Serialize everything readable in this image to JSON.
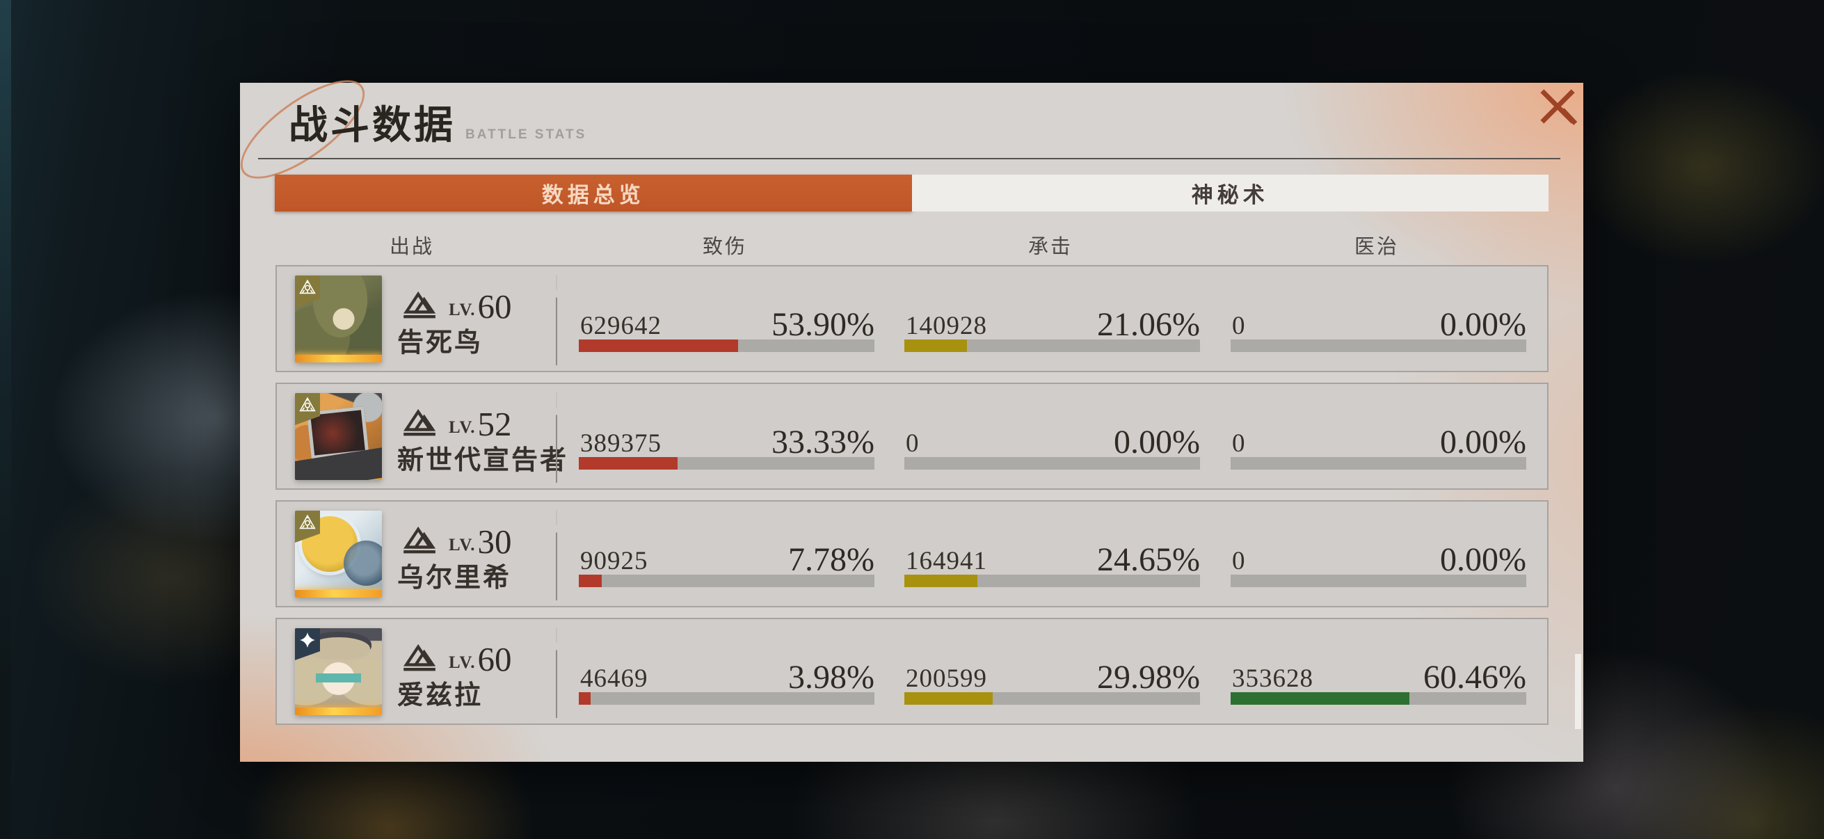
{
  "panel": {
    "title": "战斗数据",
    "subtitle": "BATTLE STATS"
  },
  "tabs": [
    {
      "label": "数据总览",
      "active": true
    },
    {
      "label": "神秘术",
      "active": false
    }
  ],
  "columns": [
    "出战",
    "致伤",
    "承击",
    "医治"
  ],
  "colors": {
    "damage": "#b23a2a",
    "taken": "#a8910f",
    "heal": "#2e7031",
    "track": "#abaaa7",
    "tab_active": "#c7602e"
  },
  "rows": [
    {
      "name": "告死鸟",
      "level_label": "LV.",
      "level": "60",
      "stats": [
        {
          "value": "629642",
          "pct": "53.90%",
          "fill": 53.9,
          "type": "damage"
        },
        {
          "value": "140928",
          "pct": "21.06%",
          "fill": 21.06,
          "type": "taken"
        },
        {
          "value": "0",
          "pct": "0.00%",
          "fill": 0,
          "type": "heal"
        }
      ]
    },
    {
      "name": "新世代宣告者",
      "level_label": "LV.",
      "level": "52",
      "stats": [
        {
          "value": "389375",
          "pct": "33.33%",
          "fill": 33.33,
          "type": "damage"
        },
        {
          "value": "0",
          "pct": "0.00%",
          "fill": 0,
          "type": "taken"
        },
        {
          "value": "0",
          "pct": "0.00%",
          "fill": 0,
          "type": "heal"
        }
      ]
    },
    {
      "name": "乌尔里希",
      "level_label": "LV.",
      "level": "30",
      "stats": [
        {
          "value": "90925",
          "pct": "7.78%",
          "fill": 7.78,
          "type": "damage"
        },
        {
          "value": "164941",
          "pct": "24.65%",
          "fill": 24.65,
          "type": "taken"
        },
        {
          "value": "0",
          "pct": "0.00%",
          "fill": 0,
          "type": "heal"
        }
      ]
    },
    {
      "name": "爱兹拉",
      "level_label": "LV.",
      "level": "60",
      "stats": [
        {
          "value": "46469",
          "pct": "3.98%",
          "fill": 3.98,
          "type": "damage"
        },
        {
          "value": "200599",
          "pct": "29.98%",
          "fill": 29.98,
          "type": "taken"
        },
        {
          "value": "353628",
          "pct": "60.46%",
          "fill": 60.46,
          "type": "heal"
        }
      ]
    }
  ]
}
